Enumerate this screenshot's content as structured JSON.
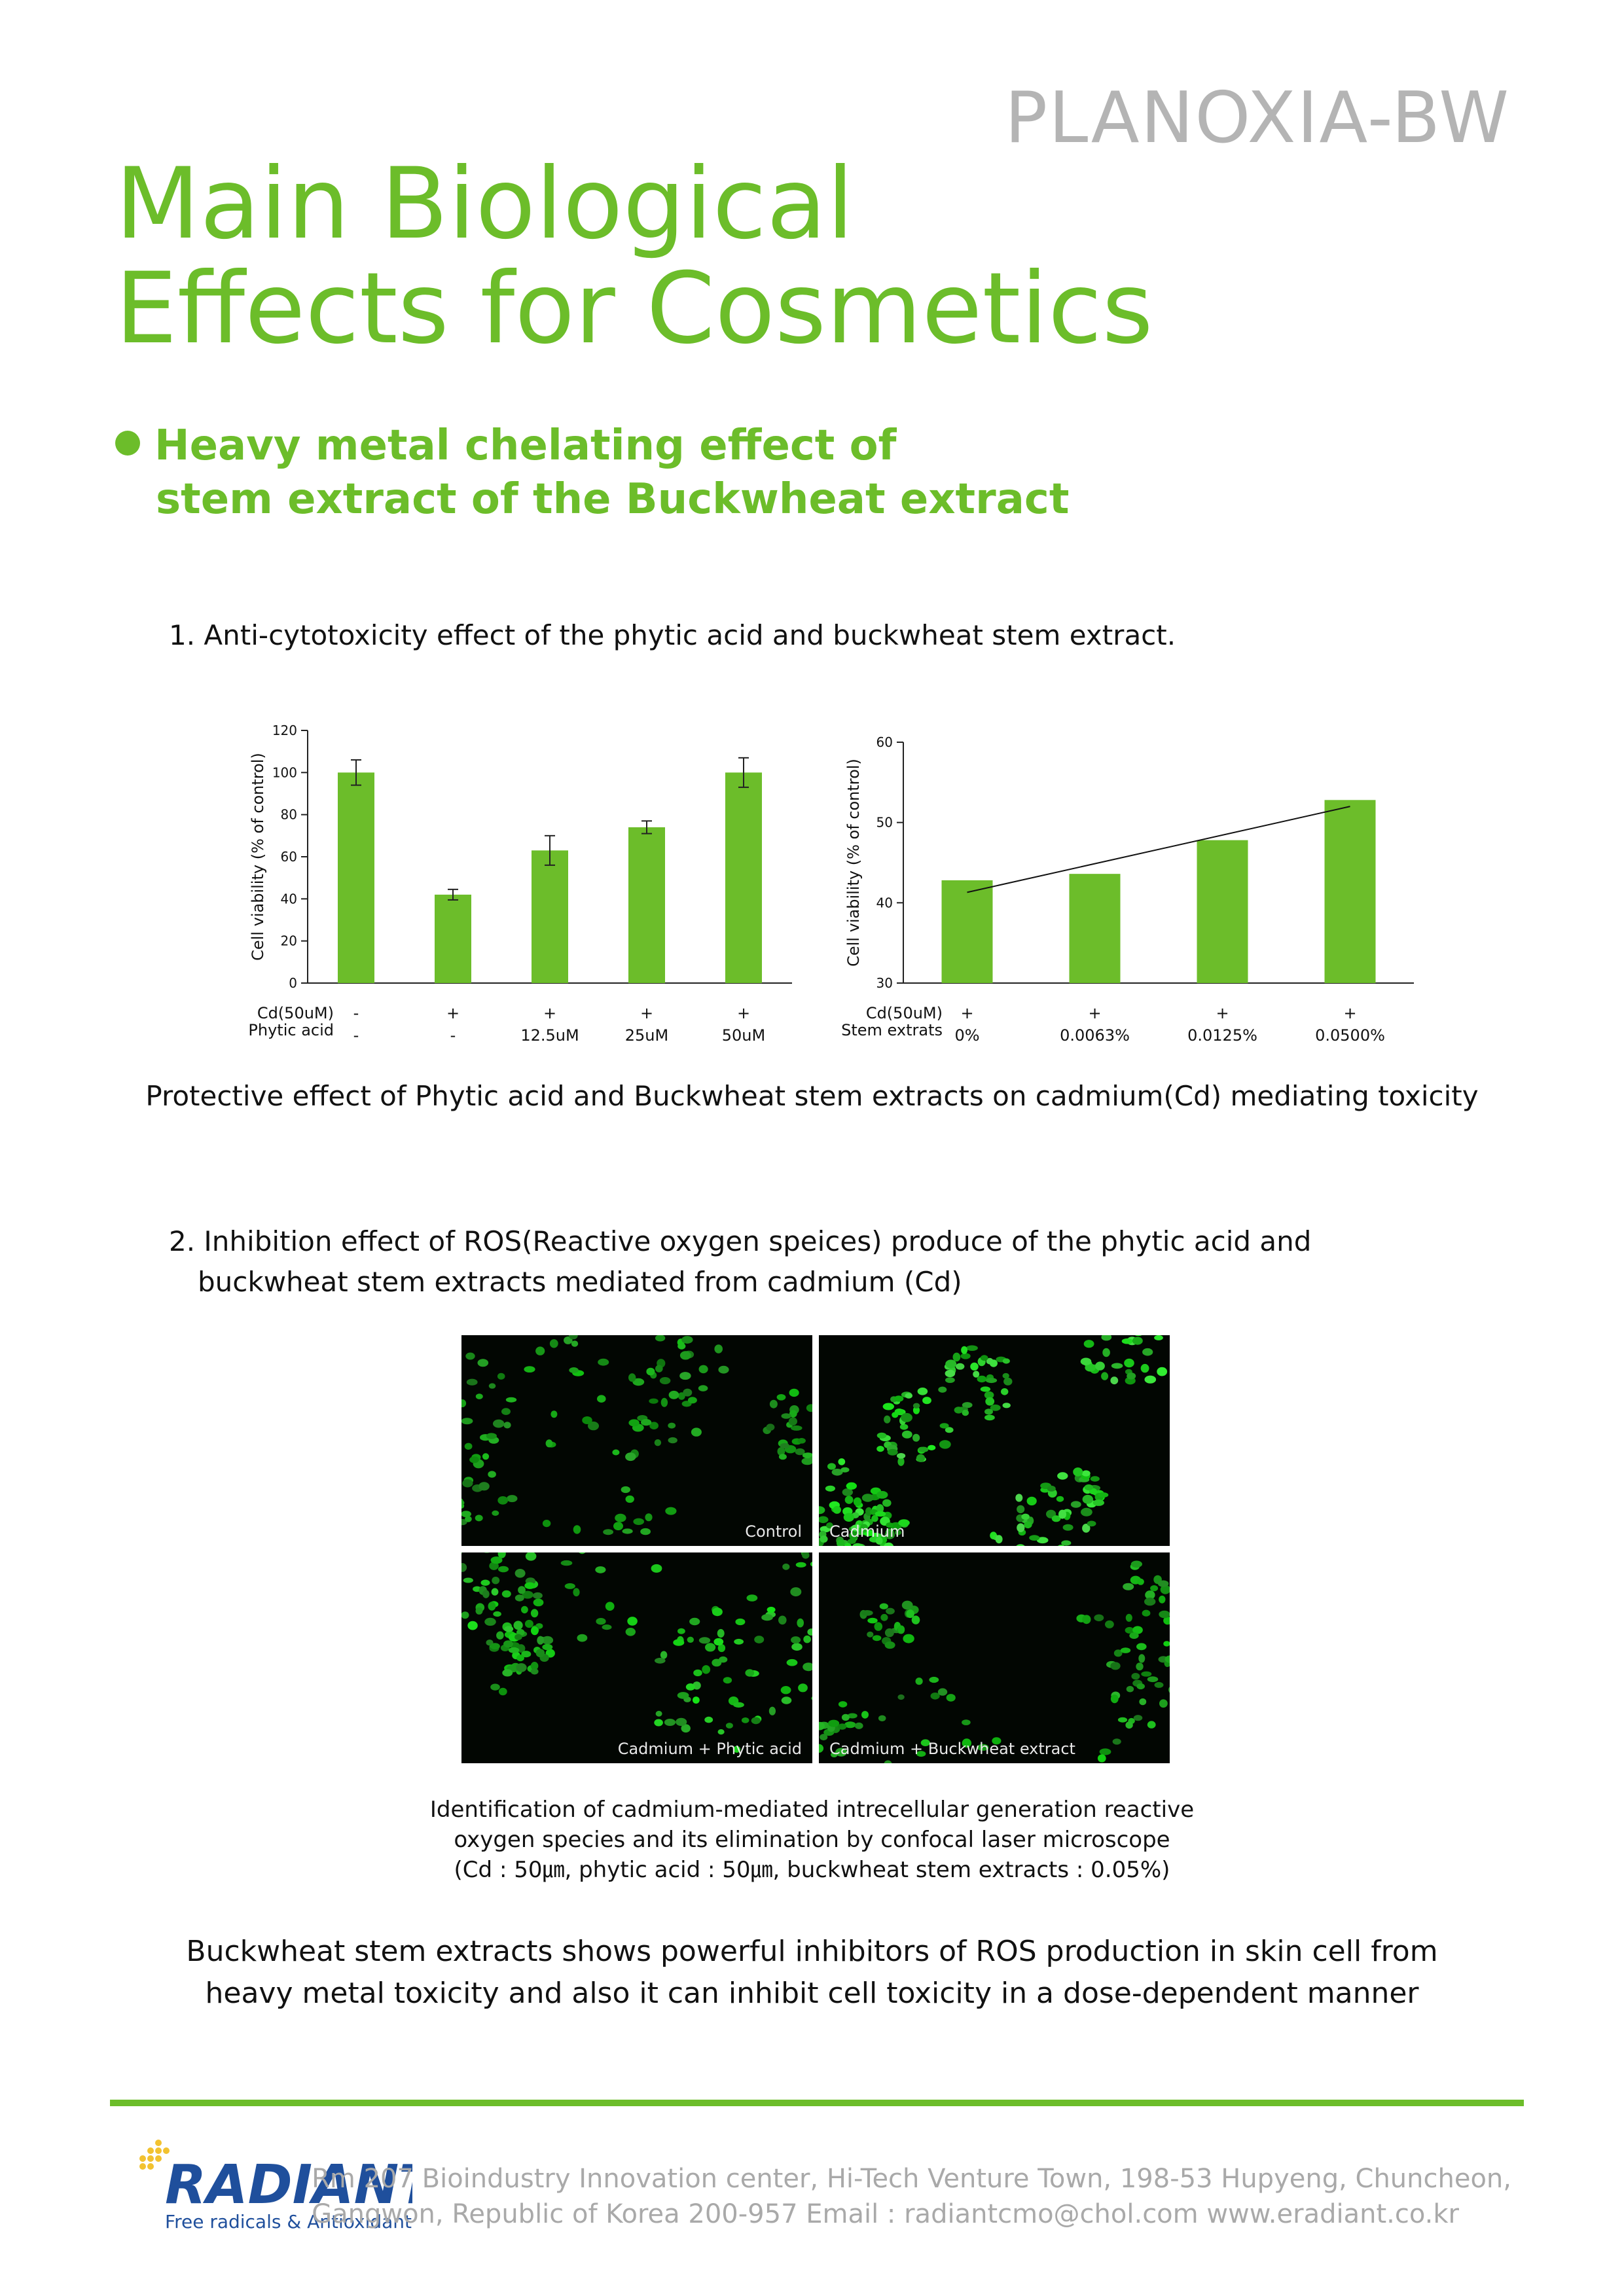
{
  "product_name": "PLANOXIA-BW",
  "title": {
    "line1": "Main Biological",
    "line2": "Effects for Cosmetics"
  },
  "section": {
    "line1": "Heavy metal chelating effect of",
    "line2": "stem extract of the Buckwheat extract"
  },
  "figure1": {
    "heading": "1. Anti-cytotoxicity effect of the phytic acid and buckwheat stem extract.",
    "caption": "Protective effect of Phytic acid and Buckwheat stem extracts on cadmium(Cd) mediating toxicity"
  },
  "chart_data": [
    {
      "type": "bar",
      "ylabel": "Cell viability (% of control)",
      "ylim": [
        0,
        120
      ],
      "yticks": [
        0,
        20,
        40,
        60,
        80,
        100,
        120
      ],
      "row_labels": [
        "Cd(50uM)",
        "Phytic acid"
      ],
      "categories": [
        {
          "cd": "-",
          "treatment": "-"
        },
        {
          "cd": "+",
          "treatment": "-"
        },
        {
          "cd": "+",
          "treatment": "12.5uM"
        },
        {
          "cd": "+",
          "treatment": "25uM"
        },
        {
          "cd": "+",
          "treatment": "50uM"
        }
      ],
      "values": [
        100,
        42,
        63,
        74,
        100
      ],
      "errors": [
        6,
        2.5,
        7,
        3,
        7
      ],
      "color": "#6cbd2a"
    },
    {
      "type": "bar",
      "ylabel": "Cell viability (% of control)",
      "ylim": [
        30,
        60
      ],
      "yticks": [
        30,
        40,
        50,
        60
      ],
      "row_labels": [
        "Cd(50uM)",
        "Stem extrats"
      ],
      "categories": [
        {
          "cd": "+",
          "treatment": "0%"
        },
        {
          "cd": "+",
          "treatment": "0.0063%"
        },
        {
          "cd": "+",
          "treatment": "0.0125%"
        },
        {
          "cd": "+",
          "treatment": "0.0500%"
        }
      ],
      "values": [
        42.8,
        43.6,
        47.8,
        52.8
      ],
      "trendline": [
        41.3,
        52
      ],
      "color": "#6cbd2a"
    }
  ],
  "figure2": {
    "heading_line1": "2. Inhibition effect of ROS(Reactive oxygen speices) produce of the phytic acid and",
    "heading_line2": "buckwheat stem extracts mediated from cadmium (Cd)",
    "panels": [
      {
        "label": "Control",
        "density": 0.35,
        "brightness": 0.55
      },
      {
        "label": "Cadmium",
        "density": 0.85,
        "brightness": 0.9
      },
      {
        "label": "Cadmium + Phytic acid",
        "density": 0.5,
        "brightness": 0.7
      },
      {
        "label": "Cadmium + Buckwheat extract",
        "density": 0.42,
        "brightness": 0.6
      }
    ],
    "caption_line1": "Identification of cadmium-mediated intrecellular generation reactive",
    "caption_line2": "oxygen species and its elimination by confocal laser microscope",
    "caption_line3": "(Cd : 50㎛, phytic acid : 50㎛, buckwheat stem extracts : 0.05%)"
  },
  "summary": {
    "line1": "Buckwheat stem extracts shows powerful inhibitors of ROS production in skin cell from",
    "line2": "heavy metal toxicity and also it can inhibit cell toxicity in a dose-dependent manner"
  },
  "footer": {
    "logo_text": "RADIANT",
    "logo_tagline": "Free radicals & Antioxidants",
    "address_line1": "Rm 207 Bioindustry Innovation center, Hi-Tech Venture Town, 198-53 Hupyeng, Chuncheon,",
    "address_line2": "Gangwon, Republic of Korea 200-957 Email : radiantcmo@chol.com  www.eradiant.co.kr",
    "accent_color": "#6cbd2a",
    "logo_color": "#1f4f9c",
    "logo_dot_color": "#f2c230"
  }
}
